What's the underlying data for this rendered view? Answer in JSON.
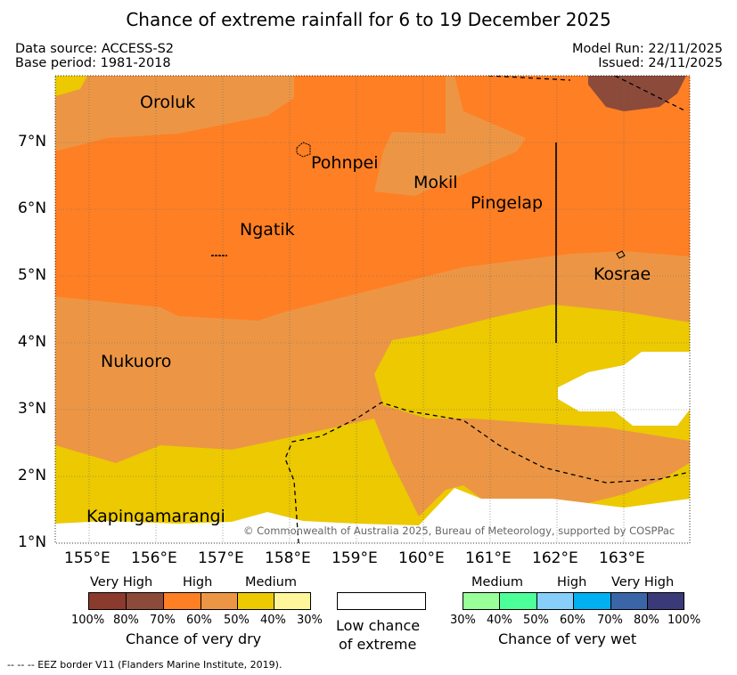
{
  "title": "Chance of extreme rainfall for 6 to 19 December 2025",
  "header": {
    "data_source": "Data source: ACCESS-S2",
    "base_period": "Base period: 1981-2018",
    "model_run": "Model Run: 22/11/2025",
    "issued": "Issued: 24/11/2025"
  },
  "map": {
    "lon_labels": [
      "155°E",
      "156°E",
      "157°E",
      "158°E",
      "159°E",
      "160°E",
      "161°E",
      "162°E",
      "163°E"
    ],
    "lat_labels": [
      "7°N",
      "6°N",
      "5°N",
      "4°N",
      "3°N",
      "2°N",
      "1°N"
    ],
    "places": {
      "oroluk": "Oroluk",
      "pohnpei": "Pohnpei",
      "mokil": "Mokil",
      "pingelap": "Pingelap",
      "ngatik": "Ngatik",
      "kosrae": "Kosrae",
      "nukuoro": "Nukuoro",
      "kapingamarangi": "Kapingamarangi"
    },
    "copyright": "© Commonwealth of Australia 2025, Bureau of Meteorology, supported by COSPPac"
  },
  "legend": {
    "dry": {
      "groups": [
        "Very High",
        "High",
        "Medium"
      ],
      "ticks": [
        "100%",
        "80%",
        "70%",
        "60%",
        "50%",
        "40%",
        "30%"
      ],
      "caption": "Chance of very dry",
      "colors": [
        "#8b3a2e",
        "#8c4a3a",
        "#ff7f24",
        "#ec9645",
        "#ecc900",
        "#fff59a"
      ]
    },
    "low": {
      "caption_line1": "Low chance",
      "caption_line2": "of extreme",
      "color": "#ffffff"
    },
    "wet": {
      "groups": [
        "Medium",
        "High",
        "Very High"
      ],
      "ticks": [
        "30%",
        "40%",
        "50%",
        "60%",
        "70%",
        "80%",
        "100%"
      ],
      "caption": "Chance of very wet",
      "colors": [
        "#99ff99",
        "#4dff99",
        "#87cefa",
        "#00b0f0",
        "#3a66a8",
        "#3a3a78"
      ]
    }
  },
  "footer": "--  --  -- EEZ border V11 (Flanders Marine Institute, 2019)."
}
